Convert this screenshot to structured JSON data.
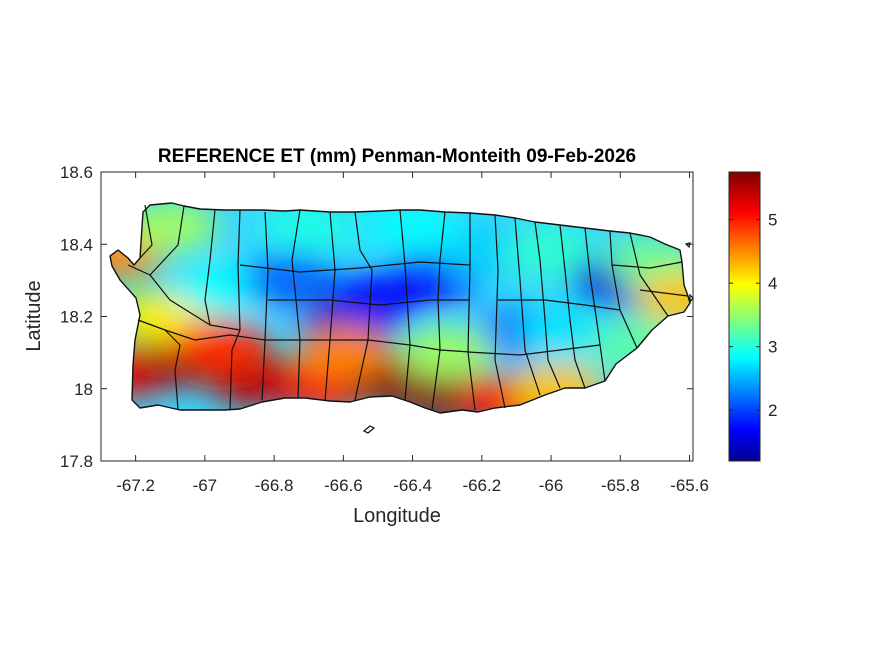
{
  "figure": {
    "title": "REFERENCE ET (mm) Penman-Monteith 09-Feb-2026",
    "xlabel": "Longitude",
    "ylabel": "Latitude"
  },
  "axes": {
    "xlim": [
      -67.3,
      -65.59
    ],
    "ylim": [
      17.8,
      18.6
    ],
    "xticks": [
      -67.2,
      -67,
      -66.8,
      -66.6,
      -66.4,
      -66.2,
      -66,
      -65.8,
      -65.6
    ],
    "xtick_labels": [
      "-67.2",
      "-67",
      "-66.8",
      "-66.6",
      "-66.4",
      "-66.2",
      "-66",
      "-65.8",
      "-65.6"
    ],
    "yticks": [
      17.8,
      18,
      18.2,
      18.4,
      18.6
    ],
    "ytick_labels": [
      "17.8",
      "18",
      "18.2",
      "18.4",
      "18.6"
    ],
    "box": true,
    "grid": false
  },
  "colorbar": {
    "colormap": "jet",
    "range": [
      1.2,
      5.75
    ],
    "ticks": [
      2,
      3,
      4,
      5
    ],
    "tick_labels": [
      "2",
      "3",
      "4",
      "5"
    ],
    "location": "right"
  },
  "chart_data": {
    "type": "heatmap",
    "title": "REFERENCE ET (mm) Penman-Monteith 09-Feb-2026",
    "xlabel": "Longitude",
    "ylabel": "Latitude",
    "xlim": [
      -67.3,
      -65.59
    ],
    "ylim": [
      17.8,
      18.6
    ],
    "colorbar_range": [
      1.2,
      5.75
    ],
    "region": "Puerto Rico",
    "boundaries": "municipalities",
    "field_samples": [
      {
        "lon": -67.22,
        "lat": 18.05,
        "value": 5.3
      },
      {
        "lon": -67.05,
        "lat": 18.08,
        "value": 5.6
      },
      {
        "lon": -66.85,
        "lat": 18.02,
        "value": 5.5
      },
      {
        "lon": -66.65,
        "lat": 18.01,
        "value": 5.2
      },
      {
        "lon": -66.45,
        "lat": 18.02,
        "value": 5.7
      },
      {
        "lon": -66.3,
        "lat": 17.98,
        "value": 5.7
      },
      {
        "lon": -66.12,
        "lat": 17.97,
        "value": 5.2
      },
      {
        "lon": -65.98,
        "lat": 18.0,
        "value": 4.3
      },
      {
        "lon": -67.25,
        "lat": 18.38,
        "value": 4.6
      },
      {
        "lon": -67.12,
        "lat": 18.2,
        "value": 4.1
      },
      {
        "lon": -67.1,
        "lat": 18.45,
        "value": 3.6
      },
      {
        "lon": -66.95,
        "lat": 18.28,
        "value": 2.9
      },
      {
        "lon": -66.75,
        "lat": 18.3,
        "value": 2.2
      },
      {
        "lon": -66.58,
        "lat": 18.18,
        "value": 1.4
      },
      {
        "lon": -66.5,
        "lat": 18.25,
        "value": 1.8
      },
      {
        "lon": -66.35,
        "lat": 18.3,
        "value": 1.8
      },
      {
        "lon": -66.2,
        "lat": 18.38,
        "value": 2.7
      },
      {
        "lon": -66.0,
        "lat": 18.38,
        "value": 3.1
      },
      {
        "lon": -66.1,
        "lat": 18.15,
        "value": 2.3
      },
      {
        "lon": -65.95,
        "lat": 18.15,
        "value": 2.8
      },
      {
        "lon": -65.8,
        "lat": 18.3,
        "value": 1.6
      },
      {
        "lon": -65.7,
        "lat": 18.35,
        "value": 3.4
      },
      {
        "lon": -65.62,
        "lat": 18.25,
        "value": 4.3
      },
      {
        "lon": -65.75,
        "lat": 18.12,
        "value": 3.3
      },
      {
        "lon": -66.4,
        "lat": 18.45,
        "value": 2.9
      },
      {
        "lon": -66.7,
        "lat": 18.45,
        "value": 3.0
      },
      {
        "lon": -66.6,
        "lat": 18.1,
        "value": 4.6
      },
      {
        "lon": -66.95,
        "lat": 18.12,
        "value": 5.0
      },
      {
        "lon": -66.3,
        "lat": 18.1,
        "value": 3.6
      }
    ]
  }
}
